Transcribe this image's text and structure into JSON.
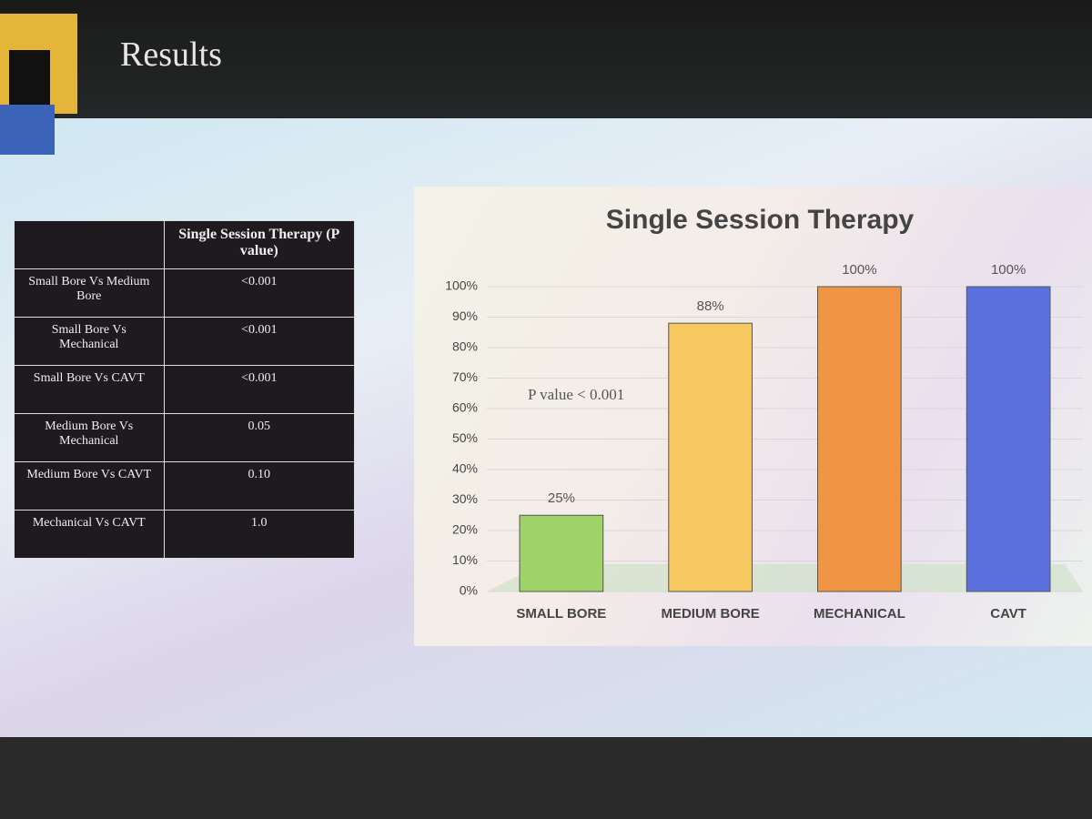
{
  "slide": {
    "title": "Results"
  },
  "table": {
    "header": "Single Session Therapy (P value)",
    "rows": [
      [
        "Small Bore Vs Medium Bore",
        "<0.001"
      ],
      [
        "Small Bore Vs Mechanical",
        "<0.001"
      ],
      [
        "Small Bore Vs CAVT",
        "<0.001"
      ],
      [
        "Medium Bore Vs Mechanical",
        "0.05"
      ],
      [
        "Medium Bore Vs CAVT",
        "0.10"
      ],
      [
        "Mechanical  Vs CAVT",
        "1.0"
      ]
    ]
  },
  "chart_data": {
    "type": "bar",
    "title": "Single Session Therapy",
    "categories": [
      "SMALL BORE",
      "MEDIUM BORE",
      "MECHANICAL",
      "CAVT"
    ],
    "values": [
      25,
      88,
      100,
      100
    ],
    "value_labels": [
      "25%",
      "88%",
      "100%",
      "100%"
    ],
    "colors": [
      "#9ed36a",
      "#f5c860",
      "#ef9543",
      "#5b72de"
    ],
    "ylim": [
      0,
      100
    ],
    "yticks": [
      {
        "value": 0,
        "label": "0%"
      },
      {
        "value": 10,
        "label": "10%"
      },
      {
        "value": 20,
        "label": "20%"
      },
      {
        "value": 30,
        "label": "30%"
      },
      {
        "value": 40,
        "label": "40%"
      },
      {
        "value": 50,
        "label": "50%"
      },
      {
        "value": 60,
        "label": "60%"
      },
      {
        "value": 70,
        "label": "70%"
      },
      {
        "value": 80,
        "label": "80%"
      },
      {
        "value": 90,
        "label": "90%"
      },
      {
        "value": 100,
        "label": "100%"
      }
    ],
    "grid": true,
    "annotation": "P value < 0.001"
  }
}
